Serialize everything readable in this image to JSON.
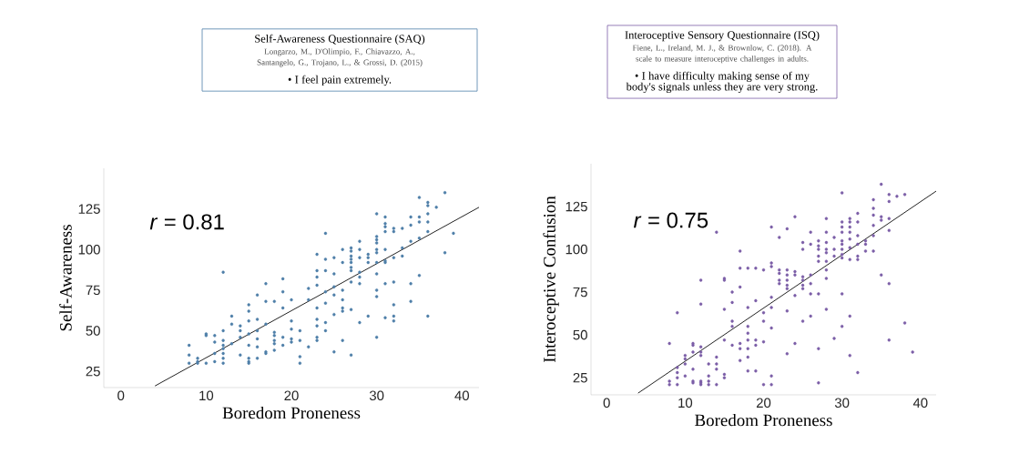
{
  "chart_data": [
    {
      "type": "scatter",
      "title": "Self-Awareness Questionnaire (SAQ)",
      "subtitle": "Longarzo, M., D'Olimpio, F., Chiavazzo, A., Santangelo, G., Trojano, L., & Grossi, D. (2015)",
      "annotations": [
        "• I feel pain extremely.",
        "*r* = 0.81"
      ],
      "xlabel": "Boredom Proneness",
      "ylabel": "Self-Awareness",
      "xlim": [
        -2,
        42
      ],
      "ylim": [
        15,
        150
      ],
      "xticks": [
        0,
        10,
        20,
        30,
        40
      ],
      "yticks": [
        25,
        50,
        75,
        100,
        125
      ],
      "grid": false,
      "marker": "circle",
      "series": [
        {
          "color": "#4e7fa8",
          "x": [
            8,
            8,
            8,
            9,
            9,
            9,
            10,
            10,
            10,
            11,
            11,
            11,
            11,
            12,
            12,
            12,
            12,
            12,
            12,
            12,
            12,
            13,
            13,
            13,
            14,
            14,
            14,
            14,
            15,
            15,
            15,
            15,
            15,
            15,
            15,
            15,
            16,
            16,
            16,
            16,
            16,
            16,
            17,
            17,
            17,
            17,
            17,
            18,
            18,
            18,
            18,
            18,
            18,
            19,
            19,
            19,
            19,
            19,
            20,
            20,
            20,
            20,
            20,
            21,
            21,
            21,
            21,
            22,
            22,
            22,
            23,
            23,
            23,
            23,
            23,
            23,
            23,
            23,
            23,
            24,
            24,
            24,
            24,
            24,
            24,
            24,
            25,
            25,
            25,
            25,
            25,
            25,
            26,
            26,
            26,
            26,
            26,
            26,
            26,
            27,
            27,
            27,
            27,
            27,
            27,
            27,
            27,
            27,
            27,
            28,
            28,
            28,
            28,
            28,
            28,
            28,
            29,
            29,
            29,
            29,
            30,
            30,
            30,
            30,
            30,
            30,
            30,
            30,
            30,
            30,
            30,
            31,
            31,
            31,
            31,
            31,
            31,
            31,
            31,
            31,
            32,
            32,
            32,
            32,
            32,
            32,
            32,
            33,
            33,
            33,
            34,
            34,
            34,
            34,
            34,
            35,
            35,
            35,
            35,
            35,
            36,
            36,
            36,
            36,
            36,
            36,
            37,
            38,
            38,
            39
          ],
          "values": [
            41,
            35,
            30,
            33,
            31,
            30,
            48,
            47,
            30,
            47,
            43,
            36,
            31,
            86,
            50,
            44,
            41,
            39,
            36,
            33,
            30,
            59,
            54,
            42,
            53,
            50,
            46,
            35,
            66,
            62,
            56,
            48,
            41,
            33,
            31,
            30,
            72,
            57,
            50,
            45,
            40,
            33,
            79,
            68,
            54,
            37,
            36,
            68,
            49,
            47,
            44,
            42,
            38,
            82,
            74,
            64,
            46,
            41,
            69,
            56,
            51,
            45,
            43,
            50,
            44,
            34,
            30,
            76,
            69,
            40,
            97,
            87,
            83,
            78,
            64,
            57,
            53,
            46,
            44,
            110,
            94,
            87,
            74,
            67,
            55,
            50,
            95,
            85,
            77,
            72,
            60,
            37,
            100,
            92,
            75,
            69,
            64,
            62,
            44,
            101,
            99,
            96,
            94,
            92,
            89,
            87,
            80,
            63,
            35,
            105,
            100,
            95,
            86,
            83,
            79,
            55,
            97,
            95,
            92,
            59,
            122,
            108,
            106,
            104,
            100,
            98,
            92,
            85,
            75,
            71,
            46,
            120,
            116,
            114,
            111,
            100,
            93,
            92,
            79,
            58,
            113,
            111,
            95,
            80,
            66,
            59,
            56,
            113,
            101,
            96,
            120,
            115,
            105,
            79,
            68,
            132,
            120,
            117,
            107,
            84,
            129,
            127,
            122,
            117,
            111,
            59,
            126,
            135,
            98,
            110
          ]
        },
        {
          "type": "line",
          "color": "#222222",
          "marker": "none",
          "x": [
            4,
            42
          ],
          "values": [
            16,
            126
          ]
        }
      ]
    },
    {
      "type": "scatter",
      "title": "Interoceptive Sensory Questionnaire (ISQ)",
      "subtitle": "Fiene, L., Ireland, M. J., & Brownlow, C. (2018). A scale to measure interoceptive challenges in adults.",
      "annotations": [
        "• I have difficulty making sense of my body's signals unless they are very strong.",
        "*r* = 0.75"
      ],
      "xlabel": "Boredom Proneness",
      "ylabel": "Interoceptive Confusion",
      "xlim": [
        -2,
        42
      ],
      "ylim": [
        15,
        150
      ],
      "xticks": [
        0,
        10,
        20,
        30,
        40
      ],
      "yticks": [
        25,
        50,
        75,
        100,
        125
      ],
      "grid": false,
      "marker": "circle",
      "series": [
        {
          "color": "#7b5ea7",
          "x": [
            8,
            8,
            8,
            9,
            9,
            9,
            9,
            9,
            10,
            10,
            10,
            10,
            11,
            11,
            11,
            11,
            11,
            11,
            12,
            12,
            12,
            12,
            12,
            12,
            12,
            12,
            13,
            13,
            13,
            13,
            14,
            14,
            14,
            14,
            14,
            15,
            15,
            15,
            15,
            15,
            15,
            16,
            16,
            16,
            16,
            16,
            17,
            17,
            17,
            17,
            17,
            17,
            18,
            18,
            18,
            18,
            18,
            18,
            18,
            18,
            19,
            19,
            19,
            19,
            19,
            20,
            20,
            20,
            20,
            20,
            21,
            21,
            21,
            21,
            21,
            21,
            21,
            21,
            22,
            22,
            22,
            22,
            22,
            23,
            23,
            23,
            23,
            23,
            23,
            23,
            23,
            24,
            24,
            24,
            24,
            24,
            25,
            25,
            25,
            25,
            25,
            25,
            25,
            26,
            26,
            26,
            26,
            26,
            26,
            27,
            27,
            27,
            27,
            27,
            27,
            27,
            27,
            28,
            28,
            28,
            28,
            28,
            28,
            28,
            28,
            28,
            29,
            29,
            29,
            29,
            30,
            30,
            30,
            30,
            30,
            30,
            30,
            30,
            30,
            30,
            30,
            31,
            31,
            31,
            31,
            31,
            31,
            31,
            31,
            31,
            32,
            32,
            32,
            32,
            32,
            32,
            32,
            33,
            33,
            33,
            34,
            34,
            34,
            34,
            34,
            34,
            35,
            35,
            35,
            35,
            36,
            36,
            36,
            36,
            36,
            36,
            37,
            38,
            38,
            39
          ],
          "values": [
            45,
            23,
            21,
            63,
            31,
            28,
            25,
            21,
            38,
            36,
            33,
            26,
            45,
            44,
            40,
            30,
            23,
            22,
            82,
            68,
            43,
            40,
            38,
            23,
            22,
            21,
            33,
            26,
            23,
            21,
            110,
            37,
            33,
            30,
            21,
            83,
            82,
            65,
            47,
            27,
            25,
            75,
            69,
            58,
            55,
            44,
            99,
            89,
            78,
            45,
            42,
            35,
            89,
            66,
            55,
            51,
            47,
            42,
            37,
            29,
            89,
            70,
            47,
            44,
            29,
            88,
            63,
            58,
            46,
            21,
            113,
            92,
            90,
            72,
            66,
            54,
            26,
            21,
            107,
            88,
            86,
            82,
            80,
            112,
            88,
            85,
            82,
            79,
            77,
            64,
            39,
            119,
            87,
            85,
            73,
            45,
            104,
            100,
            84,
            82,
            79,
            77,
            58,
            110,
            103,
            85,
            80,
            74,
            61,
            105,
            102,
            100,
            96,
            93,
            74,
            42,
            22,
            118,
            110,
            104,
            100,
            98,
            93,
            88,
            83,
            65,
            107,
            100,
            96,
            48,
            133,
            116,
            113,
            110,
            105,
            103,
            100,
            97,
            95,
            74,
            55,
            118,
            116,
            113,
            110,
            106,
            101,
            94,
            61,
            38,
            121,
            116,
            108,
            103,
            96,
            94,
            28,
            105,
            103,
            99,
            129,
            124,
            120,
            114,
            108,
            99,
            138,
            119,
            117,
            85,
            132,
            128,
            118,
            111,
            80,
            47,
            131,
            132,
            57,
            40
          ]
        },
        {
          "type": "line",
          "color": "#222222",
          "marker": "none",
          "x": [
            4,
            42
          ],
          "values": [
            16,
            134
          ]
        }
      ]
    }
  ]
}
